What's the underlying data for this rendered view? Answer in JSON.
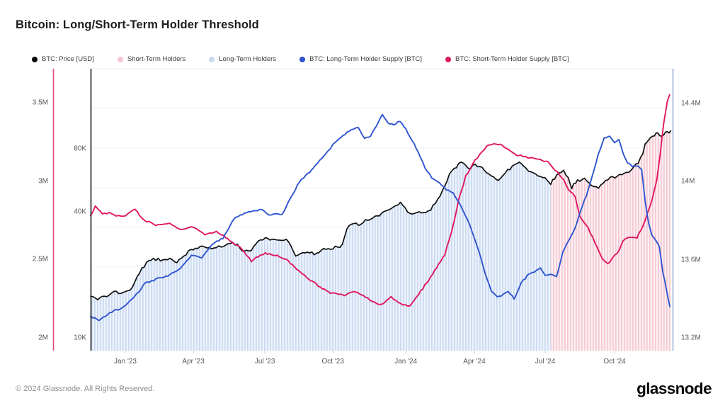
{
  "header": {
    "title": "Bitcoin: Long/Short-Term Holder Threshold"
  },
  "legend": {
    "items": [
      {
        "label": "BTC: Price [USD]",
        "color": "#0a0a0a"
      },
      {
        "label": "Short-Term Holders",
        "color": "#f3c4ce"
      },
      {
        "label": "Long-Term Holders",
        "color": "#c9d9f2"
      },
      {
        "label": "BTC: Long-Term Holder Supply [BTC]",
        "color": "#2f54d0"
      },
      {
        "label": "BTC: Short-Term Holder Supply [BTC]",
        "color": "#e0175f"
      }
    ]
  },
  "footer": {
    "copyright": "© 2024 Glassnode. All Rights Reserved.",
    "logo_text": "glassnode"
  },
  "chart_data": {
    "type": "line",
    "title": "Bitcoin: Long/Short-Term Holder Threshold",
    "x_unit": "months since mid-Nov 2022",
    "x_domain_months": 24.98,
    "x_ticks": [
      {
        "label": "Jan '23",
        "m": 1.49
      },
      {
        "label": "Apr '23",
        "m": 4.41
      },
      {
        "label": "Jul '23",
        "m": 7.48
      },
      {
        "label": "Oct '23",
        "m": 10.4
      },
      {
        "label": "Jan '24",
        "m": 13.53
      },
      {
        "label": "Apr '24",
        "m": 16.47
      },
      {
        "label": "Jul '24",
        "m": 19.51
      },
      {
        "label": "Oct '24",
        "m": 22.49
      }
    ],
    "axes": {
      "price": {
        "side": "left-inner",
        "scale": "log",
        "unit": "USD",
        "axis_color": "#1a1a1a",
        "ticks": [
          {
            "label": "10K",
            "v": 10000
          },
          {
            "label": "40K",
            "v": 40000
          },
          {
            "label": "80K",
            "v": 80000
          }
        ]
      },
      "sth": {
        "side": "left-outer",
        "scale": "linear",
        "unit": "M BTC",
        "axis_color": "#e8467c",
        "ticks": [
          {
            "label": "2M",
            "v": 2.0
          },
          {
            "label": "2.5M",
            "v": 2.5
          },
          {
            "label": "3M",
            "v": 3.0
          },
          {
            "label": "3.5M",
            "v": 3.5
          }
        ]
      },
      "lth": {
        "side": "right",
        "scale": "linear",
        "unit": "M BTC",
        "axis_color": "#9cb3de",
        "ticks": [
          {
            "label": "13.2M",
            "v": 13.2
          },
          {
            "label": "13.6M",
            "v": 13.6
          },
          {
            "label": "14M",
            "v": 14.0
          },
          {
            "label": "14.4M",
            "v": 14.4
          }
        ]
      }
    },
    "fill_regions": [
      {
        "name": "Long-Term Holders",
        "from_m": 0,
        "to_m": 19.75,
        "base": "#edf3fb",
        "stripe": "#c9d9f2"
      },
      {
        "name": "Short-Term Holders",
        "from_m": 19.75,
        "to_m": 24.9,
        "base": "#fdeff2",
        "stripe": "#f4c8d3"
      }
    ],
    "series": [
      {
        "id": "price",
        "name": "BTC: Price [USD]",
        "axis": "price",
        "color": "#111111",
        "width": 1.7,
        "points": [
          [
            0,
            15800
          ],
          [
            0.2,
            15300
          ],
          [
            0.7,
            16000
          ],
          [
            1.0,
            16600
          ],
          [
            1.3,
            16400
          ],
          [
            1.5,
            16600
          ],
          [
            1.8,
            17500
          ],
          [
            2.1,
            20500
          ],
          [
            2.4,
            22900
          ],
          [
            2.7,
            23800
          ],
          [
            3.0,
            23600
          ],
          [
            3.4,
            23900
          ],
          [
            3.7,
            22600
          ],
          [
            4.0,
            24800
          ],
          [
            4.3,
            26100
          ],
          [
            4.6,
            27100
          ],
          [
            4.9,
            27400
          ],
          [
            5.2,
            26600
          ],
          [
            5.5,
            27100
          ],
          [
            5.8,
            27900
          ],
          [
            6.1,
            28400
          ],
          [
            6.4,
            27200
          ],
          [
            6.6,
            25800
          ],
          [
            6.9,
            26200
          ],
          [
            7.2,
            29000
          ],
          [
            7.5,
            29900
          ],
          [
            7.8,
            29400
          ],
          [
            8.1,
            29300
          ],
          [
            8.4,
            29600
          ],
          [
            8.8,
            24700
          ],
          [
            9.1,
            25600
          ],
          [
            9.4,
            25900
          ],
          [
            9.6,
            25000
          ],
          [
            9.9,
            26300
          ],
          [
            10.2,
            26800
          ],
          [
            10.5,
            27100
          ],
          [
            10.8,
            27600
          ],
          [
            11.0,
            33500
          ],
          [
            11.2,
            34500
          ],
          [
            11.5,
            35000
          ],
          [
            11.8,
            36300
          ],
          [
            12.1,
            37500
          ],
          [
            12.4,
            37900
          ],
          [
            12.7,
            41000
          ],
          [
            13.0,
            42700
          ],
          [
            13.3,
            43800
          ],
          [
            13.5,
            41400
          ],
          [
            13.8,
            38900
          ],
          [
            14.1,
            39900
          ],
          [
            14.5,
            40100
          ],
          [
            14.8,
            44000
          ],
          [
            15.1,
            50500
          ],
          [
            15.4,
            60000
          ],
          [
            15.7,
            66000
          ],
          [
            15.9,
            69500
          ],
          [
            16.2,
            64000
          ],
          [
            16.5,
            67000
          ],
          [
            16.8,
            64500
          ],
          [
            17.0,
            61500
          ],
          [
            17.3,
            58500
          ],
          [
            17.5,
            57500
          ],
          [
            17.8,
            61500
          ],
          [
            18.0,
            64500
          ],
          [
            18.3,
            67500
          ],
          [
            18.5,
            68500
          ],
          [
            18.8,
            63500
          ],
          [
            19.1,
            61000
          ],
          [
            19.3,
            59000
          ],
          [
            19.5,
            57500
          ],
          [
            19.75,
            55000
          ],
          [
            20.0,
            59500
          ],
          [
            20.3,
            63500
          ],
          [
            20.5,
            58000
          ],
          [
            20.65,
            52500
          ],
          [
            20.9,
            56500
          ],
          [
            21.2,
            57500
          ],
          [
            21.5,
            53500
          ],
          [
            21.8,
            51500
          ],
          [
            22.0,
            55500
          ],
          [
            22.3,
            58000
          ],
          [
            22.5,
            58500
          ],
          [
            22.8,
            60500
          ],
          [
            23.1,
            62500
          ],
          [
            23.3,
            65500
          ],
          [
            23.5,
            68500
          ],
          [
            23.7,
            76000
          ],
          [
            23.8,
            83500
          ],
          [
            24.0,
            90000
          ],
          [
            24.2,
            92500
          ],
          [
            24.35,
            95500
          ],
          [
            24.5,
            90500
          ],
          [
            24.6,
            94500
          ],
          [
            24.75,
            96500
          ],
          [
            24.9,
            97500
          ]
        ]
      },
      {
        "id": "sth_supply",
        "name": "BTC: Short-Term Holder Supply [BTC]",
        "axis": "sth",
        "color": "#e0175f",
        "width": 1.9,
        "points": [
          [
            0,
            2.78
          ],
          [
            0.2,
            2.84
          ],
          [
            0.5,
            2.79
          ],
          [
            0.8,
            2.8
          ],
          [
            1.1,
            2.78
          ],
          [
            1.5,
            2.78
          ],
          [
            1.9,
            2.82
          ],
          [
            2.3,
            2.75
          ],
          [
            2.8,
            2.72
          ],
          [
            3.4,
            2.73
          ],
          [
            3.9,
            2.69
          ],
          [
            4.4,
            2.71
          ],
          [
            4.9,
            2.66
          ],
          [
            5.4,
            2.68
          ],
          [
            5.8,
            2.64
          ],
          [
            6.4,
            2.58
          ],
          [
            6.9,
            2.49
          ],
          [
            7.2,
            2.52
          ],
          [
            7.5,
            2.54
          ],
          [
            8.1,
            2.52
          ],
          [
            8.4,
            2.5
          ],
          [
            9.0,
            2.42
          ],
          [
            9.6,
            2.35
          ],
          [
            10.2,
            2.29
          ],
          [
            10.9,
            2.27
          ],
          [
            11.3,
            2.3
          ],
          [
            11.6,
            2.28
          ],
          [
            12.1,
            2.23
          ],
          [
            12.5,
            2.21
          ],
          [
            12.9,
            2.26
          ],
          [
            13.3,
            2.22
          ],
          [
            13.7,
            2.2
          ],
          [
            14.0,
            2.26
          ],
          [
            14.6,
            2.39
          ],
          [
            15.2,
            2.53
          ],
          [
            15.5,
            2.68
          ],
          [
            15.8,
            2.88
          ],
          [
            16.1,
            3.03
          ],
          [
            16.5,
            3.13
          ],
          [
            17.0,
            3.22
          ],
          [
            17.4,
            3.24
          ],
          [
            17.75,
            3.22
          ],
          [
            18.2,
            3.17
          ],
          [
            18.75,
            3.15
          ],
          [
            19.2,
            3.14
          ],
          [
            19.65,
            3.12
          ],
          [
            19.95,
            3.07
          ],
          [
            20.3,
            3.01
          ],
          [
            20.5,
            2.95
          ],
          [
            20.8,
            2.9
          ],
          [
            21.0,
            2.77
          ],
          [
            21.35,
            2.7
          ],
          [
            21.65,
            2.61
          ],
          [
            21.95,
            2.51
          ],
          [
            22.2,
            2.47
          ],
          [
            22.4,
            2.51
          ],
          [
            22.7,
            2.56
          ],
          [
            22.85,
            2.62
          ],
          [
            23.15,
            2.64
          ],
          [
            23.45,
            2.64
          ],
          [
            23.7,
            2.71
          ],
          [
            23.9,
            2.8
          ],
          [
            24.1,
            2.88
          ],
          [
            24.3,
            3.0
          ],
          [
            24.45,
            3.18
          ],
          [
            24.6,
            3.37
          ],
          [
            24.75,
            3.51
          ],
          [
            24.85,
            3.55
          ]
        ]
      },
      {
        "id": "lth_supply",
        "name": "BTC: Long-Term Holder Supply [BTC]",
        "axis": "lth",
        "color": "#2f54d0",
        "width": 1.9,
        "points": [
          [
            0,
            13.31
          ],
          [
            0.36,
            13.29
          ],
          [
            0.82,
            13.33
          ],
          [
            1.28,
            13.35
          ],
          [
            1.5,
            13.37
          ],
          [
            1.88,
            13.41
          ],
          [
            2.34,
            13.48
          ],
          [
            2.8,
            13.5
          ],
          [
            3.4,
            13.52
          ],
          [
            3.86,
            13.56
          ],
          [
            4.32,
            13.62
          ],
          [
            4.77,
            13.61
          ],
          [
            5.23,
            13.68
          ],
          [
            5.68,
            13.71
          ],
          [
            6.14,
            13.81
          ],
          [
            6.6,
            13.84
          ],
          [
            7.05,
            13.85
          ],
          [
            7.36,
            13.86
          ],
          [
            7.66,
            13.83
          ],
          [
            7.96,
            13.84
          ],
          [
            8.21,
            13.83
          ],
          [
            8.51,
            13.9
          ],
          [
            8.97,
            14.0
          ],
          [
            9.48,
            14.06
          ],
          [
            10.0,
            14.13
          ],
          [
            10.49,
            14.2
          ],
          [
            11.0,
            14.25
          ],
          [
            11.49,
            14.28
          ],
          [
            11.76,
            14.22
          ],
          [
            12.01,
            14.23
          ],
          [
            12.52,
            14.34
          ],
          [
            12.77,
            14.3
          ],
          [
            13.01,
            14.29
          ],
          [
            13.28,
            14.31
          ],
          [
            13.53,
            14.27
          ],
          [
            13.8,
            14.21
          ],
          [
            14.04,
            14.16
          ],
          [
            14.35,
            14.07
          ],
          [
            14.65,
            14.02
          ],
          [
            14.95,
            14.0
          ],
          [
            15.26,
            13.96
          ],
          [
            15.56,
            13.94
          ],
          [
            15.87,
            13.88
          ],
          [
            16.17,
            13.81
          ],
          [
            16.47,
            13.71
          ],
          [
            16.72,
            13.62
          ],
          [
            16.96,
            13.52
          ],
          [
            17.2,
            13.44
          ],
          [
            17.45,
            13.41
          ],
          [
            17.69,
            13.42
          ],
          [
            17.93,
            13.44
          ],
          [
            18.18,
            13.4
          ],
          [
            18.48,
            13.48
          ],
          [
            18.75,
            13.52
          ],
          [
            19.06,
            13.54
          ],
          [
            19.3,
            13.56
          ],
          [
            19.51,
            13.52
          ],
          [
            19.75,
            13.53
          ],
          [
            20.0,
            13.51
          ],
          [
            20.27,
            13.64
          ],
          [
            20.52,
            13.7
          ],
          [
            20.79,
            13.76
          ],
          [
            21.03,
            13.85
          ],
          [
            21.28,
            13.93
          ],
          [
            21.52,
            14.02
          ],
          [
            21.79,
            14.14
          ],
          [
            22.04,
            14.22
          ],
          [
            22.28,
            14.23
          ],
          [
            22.49,
            14.2
          ],
          [
            22.67,
            14.22
          ],
          [
            22.86,
            14.14
          ],
          [
            23.04,
            14.1
          ],
          [
            23.25,
            14.08
          ],
          [
            23.5,
            14.08
          ],
          [
            23.65,
            14.06
          ],
          [
            23.8,
            13.9
          ],
          [
            23.95,
            13.79
          ],
          [
            24.1,
            13.72
          ],
          [
            24.26,
            13.7
          ],
          [
            24.41,
            13.67
          ],
          [
            24.56,
            13.54
          ],
          [
            24.71,
            13.45
          ],
          [
            24.86,
            13.36
          ]
        ]
      }
    ]
  }
}
